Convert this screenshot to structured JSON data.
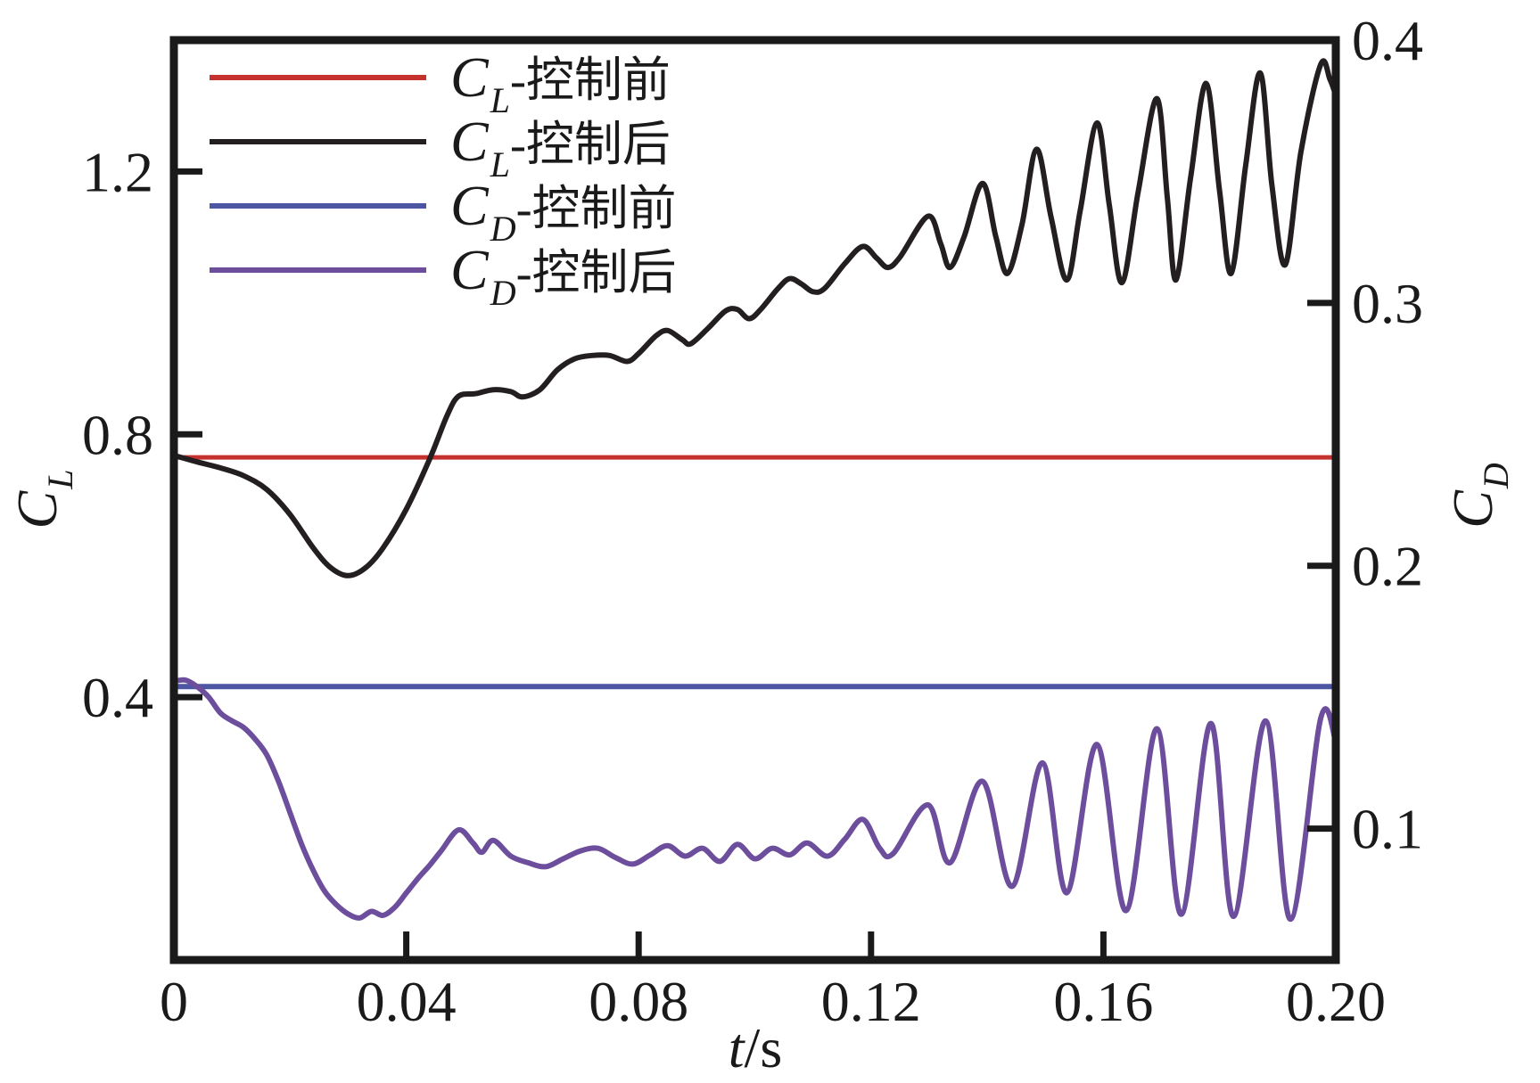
{
  "legend": {
    "items": [
      {
        "id": "cl-before",
        "sym": "C",
        "sub": "L",
        "suffix": "-控制前",
        "color": "#c5312d"
      },
      {
        "id": "cl-after",
        "sym": "C",
        "sub": "L",
        "suffix": "-控制后",
        "color": "#231e1f"
      },
      {
        "id": "cd-before",
        "sym": "C",
        "sub": "D",
        "suffix": "-控制前",
        "color": "#4c56a3"
      },
      {
        "id": "cd-after",
        "sym": "C",
        "sub": "D",
        "suffix": "-控制后",
        "color": "#6c4e9d"
      }
    ]
  },
  "axes_titles": {
    "x_sym": "t",
    "x_rest": "/s",
    "left_sym": "C",
    "left_sub": "L",
    "right_sym": "C",
    "right_sub": "D"
  },
  "chart_data": {
    "type": "line",
    "title": "",
    "xlabel": "t/s",
    "left_ylabel": "C_L",
    "right_ylabel": "C_D",
    "grid": false,
    "legend_position": "top-left-inside",
    "x_axis": {
      "range": [
        0,
        0.2
      ],
      "ticks": [
        {
          "v": 0,
          "label": "0",
          "mark": false
        },
        {
          "v": 0.04,
          "label": "0.04",
          "mark": true
        },
        {
          "v": 0.08,
          "label": "0.08",
          "mark": true
        },
        {
          "v": 0.12,
          "label": "0.12",
          "mark": true
        },
        {
          "v": 0.16,
          "label": "0.16",
          "mark": true
        },
        {
          "v": 0.2,
          "label": "0.20",
          "mark": false
        }
      ]
    },
    "left_axis": {
      "range": [
        0,
        1.4
      ],
      "ticks": [
        {
          "v": 0.4,
          "label": "0.4",
          "mark": true
        },
        {
          "v": 0.8,
          "label": "0.8",
          "mark": true
        },
        {
          "v": 1.2,
          "label": "1.2",
          "mark": true
        }
      ]
    },
    "right_axis": {
      "range": [
        0.05,
        0.4
      ],
      "ticks": [
        {
          "v": 0.1,
          "label": "0.1",
          "mark": true
        },
        {
          "v": 0.2,
          "label": "0.2",
          "mark": true
        },
        {
          "v": 0.3,
          "label": "0.3",
          "mark": true
        },
        {
          "v": 0.4,
          "label": "0.4",
          "mark": false
        }
      ]
    },
    "series": [
      {
        "id": "cl-before",
        "name": "CL-控制前",
        "axis": "left",
        "color": "#c5312d",
        "width": 5,
        "constant": 0.765
      },
      {
        "id": "cl-after",
        "name": "CL-控制后",
        "axis": "left",
        "color": "#231e1f",
        "width": 6,
        "points": [
          [
            0,
            0.768
          ],
          [
            0.004,
            0.758
          ],
          [
            0.008,
            0.749
          ],
          [
            0.012,
            0.737
          ],
          [
            0.016,
            0.716
          ],
          [
            0.02,
            0.678
          ],
          [
            0.024,
            0.627
          ],
          [
            0.027,
            0.597
          ],
          [
            0.03,
            0.585
          ],
          [
            0.033,
            0.597
          ],
          [
            0.036,
            0.627
          ],
          [
            0.04,
            0.686
          ],
          [
            0.044,
            0.762
          ],
          [
            0.047,
            0.828
          ],
          [
            0.049,
            0.858
          ],
          [
            0.052,
            0.862
          ],
          [
            0.055,
            0.868
          ],
          [
            0.058,
            0.865
          ],
          [
            0.06,
            0.857
          ],
          [
            0.063,
            0.868
          ],
          [
            0.066,
            0.898
          ],
          [
            0.069,
            0.915
          ],
          [
            0.072,
            0.92
          ],
          [
            0.075,
            0.92
          ],
          [
            0.078,
            0.911
          ],
          [
            0.08,
            0.923
          ],
          [
            0.083,
            0.95
          ],
          [
            0.085,
            0.958
          ],
          [
            0.0875,
            0.944
          ],
          [
            0.089,
            0.938
          ],
          [
            0.092,
            0.962
          ],
          [
            0.095,
            0.988
          ],
          [
            0.097,
            0.99
          ],
          [
            0.099,
            0.976
          ],
          [
            0.101,
            0.99
          ],
          [
            0.104,
            1.022
          ],
          [
            0.106,
            1.037
          ],
          [
            0.108,
            1.029
          ],
          [
            0.11,
            1.017
          ],
          [
            0.112,
            1.022
          ],
          [
            0.1155,
            1.06
          ],
          [
            0.1186,
            1.086
          ],
          [
            0.121,
            1.068
          ],
          [
            0.1229,
            1.054
          ],
          [
            0.125,
            1.07
          ],
          [
            0.1298,
            1.132
          ],
          [
            0.132,
            1.09
          ],
          [
            0.1336,
            1.054
          ],
          [
            0.136,
            1.1
          ],
          [
            0.1392,
            1.182
          ],
          [
            0.1415,
            1.1
          ],
          [
            0.1435,
            1.045
          ],
          [
            0.146,
            1.12
          ],
          [
            0.1485,
            1.234
          ],
          [
            0.151,
            1.13
          ],
          [
            0.1537,
            1.035
          ],
          [
            0.156,
            1.14
          ],
          [
            0.1589,
            1.274
          ],
          [
            0.161,
            1.15
          ],
          [
            0.1632,
            1.031
          ],
          [
            0.166,
            1.17
          ],
          [
            0.1692,
            1.311
          ],
          [
            0.171,
            1.16
          ],
          [
            0.1725,
            1.035
          ],
          [
            0.175,
            1.19
          ],
          [
            0.1777,
            1.334
          ],
          [
            0.18,
            1.17
          ],
          [
            0.182,
            1.045
          ],
          [
            0.1845,
            1.21
          ],
          [
            0.187,
            1.35
          ],
          [
            0.189,
            1.18
          ],
          [
            0.1913,
            1.058
          ],
          [
            0.194,
            1.23
          ],
          [
            0.1974,
            1.363
          ],
          [
            0.199,
            1.34
          ],
          [
            0.2,
            1.316
          ]
        ]
      },
      {
        "id": "cd-before",
        "name": "CD-控制前",
        "axis": "right",
        "color": "#4c56a3",
        "width": 6,
        "constant": 0.154
      },
      {
        "id": "cd-after",
        "name": "CD-控制后",
        "axis": "right",
        "color": "#6c4e9d",
        "width": 6,
        "points": [
          [
            0,
            0.156
          ],
          [
            0.002,
            0.1565
          ],
          [
            0.004,
            0.154
          ],
          [
            0.006,
            0.15
          ],
          [
            0.008,
            0.144
          ],
          [
            0.01,
            0.141
          ],
          [
            0.012,
            0.1385
          ],
          [
            0.014,
            0.134
          ],
          [
            0.016,
            0.128
          ],
          [
            0.018,
            0.118
          ],
          [
            0.02,
            0.106
          ],
          [
            0.022,
            0.094
          ],
          [
            0.024,
            0.084
          ],
          [
            0.026,
            0.076
          ],
          [
            0.028,
            0.071
          ],
          [
            0.03,
            0.0675
          ],
          [
            0.032,
            0.066
          ],
          [
            0.034,
            0.0685
          ],
          [
            0.036,
            0.067
          ],
          [
            0.038,
            0.07
          ],
          [
            0.04,
            0.0755
          ],
          [
            0.042,
            0.081
          ],
          [
            0.044,
            0.086
          ],
          [
            0.046,
            0.0915
          ],
          [
            0.049,
            0.0995
          ],
          [
            0.0515,
            0.0945
          ],
          [
            0.053,
            0.091
          ],
          [
            0.055,
            0.0955
          ],
          [
            0.058,
            0.0895
          ],
          [
            0.061,
            0.087
          ],
          [
            0.064,
            0.0855
          ],
          [
            0.067,
            0.0885
          ],
          [
            0.07,
            0.0915
          ],
          [
            0.073,
            0.0925
          ],
          [
            0.076,
            0.089
          ],
          [
            0.079,
            0.0865
          ],
          [
            0.082,
            0.09
          ],
          [
            0.085,
            0.0935
          ],
          [
            0.088,
            0.0895
          ],
          [
            0.091,
            0.0925
          ],
          [
            0.094,
            0.0875
          ],
          [
            0.097,
            0.094
          ],
          [
            0.1,
            0.0885
          ],
          [
            0.103,
            0.0925
          ],
          [
            0.106,
            0.09
          ],
          [
            0.109,
            0.0945
          ],
          [
            0.1125,
            0.0895
          ],
          [
            0.1155,
            0.096
          ],
          [
            0.1186,
            0.1035
          ],
          [
            0.1215,
            0.0925
          ],
          [
            0.1238,
            0.0905
          ],
          [
            0.1298,
            0.109
          ],
          [
            0.1336,
            0.087
          ],
          [
            0.1392,
            0.118
          ],
          [
            0.1443,
            0.078
          ],
          [
            0.1495,
            0.125
          ],
          [
            0.1537,
            0.0756
          ],
          [
            0.1589,
            0.132
          ],
          [
            0.1639,
            0.0688
          ],
          [
            0.1692,
            0.138
          ],
          [
            0.1734,
            0.0674
          ],
          [
            0.1785,
            0.14
          ],
          [
            0.1824,
            0.0666
          ],
          [
            0.1879,
            0.141
          ],
          [
            0.1922,
            0.0655
          ],
          [
            0.1974,
            0.142
          ],
          [
            0.2,
            0.133
          ]
        ]
      }
    ]
  }
}
